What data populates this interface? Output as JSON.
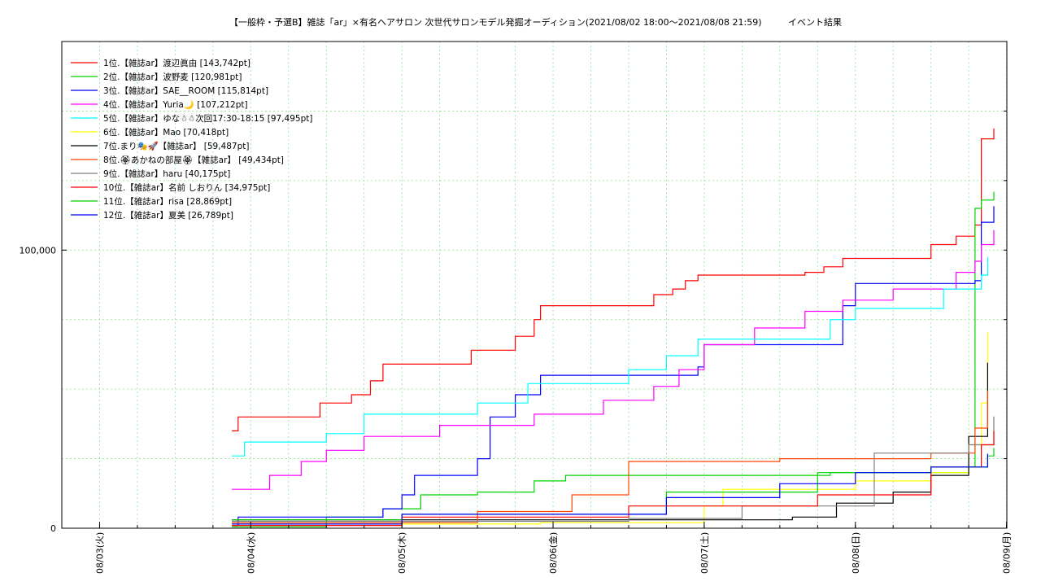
{
  "chart_data": {
    "type": "line",
    "title": "【一般枠・予選B】雑誌「ar」×有名ヘアサロン 次世代サロンモデル発掘オーディション(2021/08/02 18:00～2021/08/08 21:59)",
    "title_suffix": "イベント結果",
    "xlabel": "",
    "ylabel": "",
    "x_ticks": [
      "08/03(火)",
      "08/04(水)",
      "08/05(木)",
      "08/06(金)",
      "08/07(土)",
      "08/08(日)",
      "08/09(月)"
    ],
    "x_tick_values": [
      "2021-08-03 00:00",
      "2021-08-04 00:00",
      "2021-08-05 00:00",
      "2021-08-06 00:00",
      "2021-08-07 00:00",
      "2021-08-08 00:00",
      "2021-08-09 00:00"
    ],
    "xlim": [
      "2021-08-02 18:00",
      "2021-08-09 00:03"
    ],
    "y_ticks": [
      0,
      100000
    ],
    "y_tick_labels": [
      "0",
      "100,000"
    ],
    "ylim": [
      0,
      175000
    ],
    "grid": true,
    "legend_position": "top-left",
    "series": [
      {
        "name": "1位.【雑誌ar】渡辺眞由 [143,742pt]",
        "color": "#ff0000",
        "points": [
          [
            "2021-08-03 21:00",
            35000
          ],
          [
            "2021-08-03 22:00",
            40000
          ],
          [
            "2021-08-04 11:00",
            45000
          ],
          [
            "2021-08-04 16:00",
            48000
          ],
          [
            "2021-08-04 19:00",
            53000
          ],
          [
            "2021-08-04 21:00",
            59000
          ],
          [
            "2021-08-05 11:00",
            64000
          ],
          [
            "2021-08-05 18:00",
            69000
          ],
          [
            "2021-08-05 21:00",
            75000
          ],
          [
            "2021-08-05 22:00",
            80000
          ],
          [
            "2021-08-06 15:00",
            80000
          ],
          [
            "2021-08-06 16:00",
            84000
          ],
          [
            "2021-08-06 19:00",
            86000
          ],
          [
            "2021-08-06 21:00",
            89000
          ],
          [
            "2021-08-06 23:00",
            91000
          ],
          [
            "2021-08-07 16:00",
            92000
          ],
          [
            "2021-08-07 19:00",
            94000
          ],
          [
            "2021-08-07 22:00",
            97000
          ],
          [
            "2021-08-08 10:00",
            97000
          ],
          [
            "2021-08-08 12:00",
            102000
          ],
          [
            "2021-08-08 16:00",
            105000
          ],
          [
            "2021-08-08 19:00",
            109000
          ],
          [
            "2021-08-08 20:00",
            140000
          ],
          [
            "2021-08-08 21:59",
            143742
          ]
        ]
      },
      {
        "name": "2位.【雑誌ar】波野麦 [120,981pt]",
        "color": "#00d400",
        "points": [
          [
            "2021-08-03 21:00",
            500
          ],
          [
            "2021-08-04 12:00",
            4000
          ],
          [
            "2021-08-04 21:00",
            7000
          ],
          [
            "2021-08-05 03:00",
            12000
          ],
          [
            "2021-08-05 12:00",
            13000
          ],
          [
            "2021-08-05 21:00",
            17000
          ],
          [
            "2021-08-06 02:00",
            19000
          ],
          [
            "2021-08-07 20:00",
            20000
          ],
          [
            "2021-08-08 18:00",
            22000
          ],
          [
            "2021-08-08 19:00",
            115000
          ],
          [
            "2021-08-08 20:00",
            118000
          ],
          [
            "2021-08-08 21:59",
            120981
          ]
        ]
      },
      {
        "name": "3位.【雑誌ar】SAE__ROOM [115,814pt]",
        "color": "#0000ff",
        "points": [
          [
            "2021-08-03 21:00",
            1000
          ],
          [
            "2021-08-03 22:00",
            4000
          ],
          [
            "2021-08-04 21:00",
            7000
          ],
          [
            "2021-08-05 00:00",
            12000
          ],
          [
            "2021-08-05 02:00",
            19000
          ],
          [
            "2021-08-05 12:00",
            25000
          ],
          [
            "2021-08-05 14:00",
            40000
          ],
          [
            "2021-08-05 18:00",
            48000
          ],
          [
            "2021-08-05 22:00",
            55000
          ],
          [
            "2021-08-06 23:00",
            58000
          ],
          [
            "2021-08-07 00:00",
            66000
          ],
          [
            "2021-08-07 20:00",
            66000
          ],
          [
            "2021-08-07 22:00",
            80000
          ],
          [
            "2021-08-08 00:00",
            88000
          ],
          [
            "2021-08-08 19:00",
            89000
          ],
          [
            "2021-08-08 20:00",
            110000
          ],
          [
            "2021-08-08 21:59",
            115814
          ]
        ]
      },
      {
        "name": "4位.【雑誌ar】Yuria🌙 [107,212pt]",
        "color": "#ff00ff",
        "points": [
          [
            "2021-08-03 21:00",
            14000
          ],
          [
            "2021-08-04 03:00",
            19000
          ],
          [
            "2021-08-04 08:00",
            24000
          ],
          [
            "2021-08-04 12:00",
            28000
          ],
          [
            "2021-08-04 18:00",
            33000
          ],
          [
            "2021-08-05 06:00",
            37000
          ],
          [
            "2021-08-05 21:00",
            41000
          ],
          [
            "2021-08-06 08:00",
            46000
          ],
          [
            "2021-08-06 16:00",
            51000
          ],
          [
            "2021-08-06 20:00",
            57000
          ],
          [
            "2021-08-07 00:00",
            66000
          ],
          [
            "2021-08-07 08:00",
            72000
          ],
          [
            "2021-08-07 16:00",
            78000
          ],
          [
            "2021-08-07 22:00",
            82000
          ],
          [
            "2021-08-08 06:00",
            86000
          ],
          [
            "2021-08-08 16:00",
            92000
          ],
          [
            "2021-08-08 19:00",
            96000
          ],
          [
            "2021-08-08 20:00",
            102000
          ],
          [
            "2021-08-08 21:59",
            107212
          ]
        ]
      },
      {
        "name": "5位.【雑誌ar】ゆな☃☃次回17:30-18:15 [97,495pt]",
        "color": "#00ffff",
        "points": [
          [
            "2021-08-03 21:00",
            26000
          ],
          [
            "2021-08-03 23:00",
            31000
          ],
          [
            "2021-08-04 12:00",
            34000
          ],
          [
            "2021-08-04 18:00",
            41000
          ],
          [
            "2021-08-05 12:00",
            45000
          ],
          [
            "2021-08-05 20:00",
            52000
          ],
          [
            "2021-08-06 12:00",
            57000
          ],
          [
            "2021-08-06 18:00",
            62000
          ],
          [
            "2021-08-06 23:00",
            68000
          ],
          [
            "2021-08-07 20:00",
            75000
          ],
          [
            "2021-08-08 00:00",
            79000
          ],
          [
            "2021-08-08 14:00",
            86000
          ],
          [
            "2021-08-08 20:00",
            91000
          ],
          [
            "2021-08-08 21:00",
            97495
          ]
        ]
      },
      {
        "name": "6位.【雑誌ar】Mao [70,418pt]",
        "color": "#ffff00",
        "points": [
          [
            "2021-08-03 21:00",
            1500
          ],
          [
            "2021-08-05 22:00",
            2000
          ],
          [
            "2021-08-07 00:00",
            8000
          ],
          [
            "2021-08-07 03:00",
            14000
          ],
          [
            "2021-08-08 00:00",
            17000
          ],
          [
            "2021-08-08 12:00",
            20000
          ],
          [
            "2021-08-08 18:00",
            30000
          ],
          [
            "2021-08-08 20:00",
            45000
          ],
          [
            "2021-08-08 21:00",
            70418
          ]
        ]
      },
      {
        "name": "7位.まり🎭🚀【雑誌ar】 [59,487pt]",
        "color": "#000000",
        "points": [
          [
            "2021-08-03 21:00",
            3000
          ],
          [
            "2021-08-07 14:00",
            4000
          ],
          [
            "2021-08-07 21:00",
            9000
          ],
          [
            "2021-08-08 06:00",
            13000
          ],
          [
            "2021-08-08 12:00",
            19000
          ],
          [
            "2021-08-08 18:00",
            33000
          ],
          [
            "2021-08-08 21:00",
            59487
          ]
        ]
      },
      {
        "name": "8位.🏵あかねの部屋🏵【雑誌ar】 [49,434pt]",
        "color": "#ff4500",
        "points": [
          [
            "2021-08-03 21:00",
            2000
          ],
          [
            "2021-08-05 12:00",
            6000
          ],
          [
            "2021-08-06 03:00",
            12000
          ],
          [
            "2021-08-06 12:00",
            24000
          ],
          [
            "2021-08-07 12:00",
            25000
          ],
          [
            "2021-08-08 12:00",
            27000
          ],
          [
            "2021-08-08 19:00",
            36000
          ],
          [
            "2021-08-08 21:00",
            49434
          ]
        ]
      },
      {
        "name": "9位.【雑誌ar】haru [40,175pt]",
        "color": "#808080",
        "points": [
          [
            "2021-08-03 21:00",
            2500
          ],
          [
            "2021-08-06 12:00",
            3500
          ],
          [
            "2021-08-07 06:00",
            8000
          ],
          [
            "2021-08-08 03:00",
            27000
          ],
          [
            "2021-08-08 18:00",
            30000
          ],
          [
            "2021-08-08 21:59",
            40175
          ]
        ]
      },
      {
        "name": "10位.【雑誌ar】名前 しおりん [34,975pt]",
        "color": "#ff0000",
        "points": [
          [
            "2021-08-03 21:00",
            1000
          ],
          [
            "2021-08-05 00:00",
            4000
          ],
          [
            "2021-08-06 12:00",
            8000
          ],
          [
            "2021-08-07 18:00",
            12000
          ],
          [
            "2021-08-08 12:00",
            22000
          ],
          [
            "2021-08-08 20:00",
            30000
          ],
          [
            "2021-08-08 21:59",
            34975
          ]
        ]
      },
      {
        "name": "11位.【雑誌ar】risa [28,869pt]",
        "color": "#00d400",
        "points": [
          [
            "2021-08-03 21:00",
            3000
          ],
          [
            "2021-08-05 00:00",
            5000
          ],
          [
            "2021-08-06 18:00",
            13000
          ],
          [
            "2021-08-07 18:00",
            20000
          ],
          [
            "2021-08-08 12:00",
            22000
          ],
          [
            "2021-08-08 21:00",
            26000
          ],
          [
            "2021-08-08 21:59",
            28869
          ]
        ]
      },
      {
        "name": "12位.【雑誌ar】夏美 [26,789pt]",
        "color": "#0000ff",
        "points": [
          [
            "2021-08-03 21:00",
            1500
          ],
          [
            "2021-08-05 00:00",
            5000
          ],
          [
            "2021-08-06 18:00",
            11000
          ],
          [
            "2021-08-07 12:00",
            16000
          ],
          [
            "2021-08-08 00:00",
            20000
          ],
          [
            "2021-08-08 12:00",
            22000
          ],
          [
            "2021-08-08 21:00",
            26789
          ]
        ]
      }
    ]
  }
}
